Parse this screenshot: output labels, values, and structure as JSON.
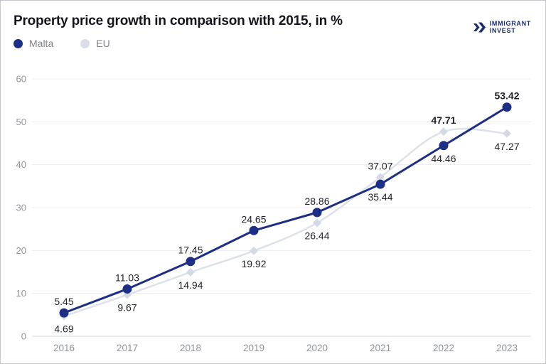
{
  "header": {
    "title": "Property price growth in comparison with 2015, in %"
  },
  "logo": {
    "line1": "IMMIGRANT",
    "line2": "INVEST",
    "icon": "double-chevron-icon",
    "color": "#1b2c6f"
  },
  "chart_data": {
    "type": "line",
    "title": "Property price growth in comparison with 2015, in %",
    "categories": [
      "2016",
      "2017",
      "2018",
      "2019",
      "2020",
      "2021",
      "2022",
      "2023"
    ],
    "series": [
      {
        "name": "Malta",
        "color": "#1c2e85",
        "marker": "circle",
        "marker_color": "#1c2e85",
        "line_style": "straight",
        "values": [
          5.45,
          11.03,
          17.45,
          24.65,
          28.86,
          35.44,
          44.46,
          53.42
        ],
        "labels": [
          "5.45",
          "11.03",
          "17.45",
          "24.65",
          "28.86",
          "35.44",
          "44.46",
          "53.42"
        ],
        "label_pos": [
          "above",
          "above",
          "above",
          "above",
          "above",
          "below",
          "below",
          "above"
        ],
        "label_bold": [
          false,
          false,
          false,
          false,
          false,
          false,
          false,
          true
        ]
      },
      {
        "name": "EU",
        "color": "#dce1ea",
        "marker": "diamond",
        "marker_color": "#d3dae4",
        "line_style": "smooth",
        "values": [
          4.69,
          9.67,
          14.94,
          19.92,
          26.44,
          37.07,
          47.71,
          47.27
        ],
        "labels": [
          "4.69",
          "9.67",
          "14.94",
          "19.92",
          "26.44",
          "37.07",
          "47.71",
          "47.27"
        ],
        "label_pos": [
          "below",
          "below",
          "below",
          "below",
          "below",
          "above",
          "above",
          "below"
        ],
        "label_bold": [
          false,
          false,
          false,
          false,
          false,
          false,
          true,
          false
        ]
      }
    ],
    "yticks": [
      0,
      10,
      20,
      30,
      40,
      50,
      60
    ],
    "ylim": [
      0,
      60
    ],
    "xlabel": "",
    "ylabel": "",
    "grid": "horizontal",
    "legend_position": "top-left"
  },
  "colors": {
    "grid": "#ededf0",
    "zero_line": "#ccd5e3",
    "axis_text": "#8f949e",
    "value_text": "#1f2229",
    "legend_eu_dot": "#d9dfe9"
  }
}
